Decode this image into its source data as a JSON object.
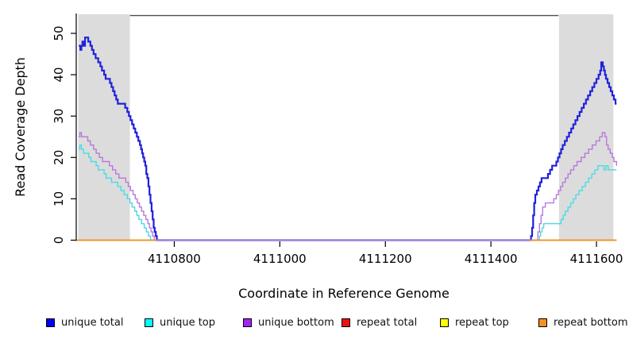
{
  "chart_data": {
    "type": "line",
    "subtype": "step-after-coverage",
    "title": "",
    "xlabel": "Coordinate in Reference Genome",
    "ylabel": "Read Coverage Depth",
    "xlim": [
      4110615,
      4111638
    ],
    "ylim": [
      0,
      54.6
    ],
    "x_ticks": [
      4110800,
      4111000,
      4111200,
      4111400,
      4111600
    ],
    "y_ticks": [
      0,
      10,
      20,
      30,
      40,
      50
    ],
    "grid": false,
    "legend_position": "bottom",
    "background": "#ffffff",
    "shaded_regions": [
      {
        "name": "left-flank",
        "x1": 4110618,
        "x2": 4110716,
        "color": "#dcdcdc"
      },
      {
        "name": "right-flank",
        "x1": 4111529,
        "x2": 4111632,
        "color": "#dcdcdc"
      }
    ],
    "top_segment": {
      "x1": 4110716,
      "x2": 4111528,
      "y": 54.3,
      "color": "#4d4d4d"
    },
    "series": [
      {
        "name": "repeat total",
        "color": "#dd1111",
        "width": 1.3,
        "segments": [
          [
            [
              4110616,
              0
            ],
            [
              4110767,
              0
            ]
          ],
          [
            [
              4111474,
              0
            ],
            [
              4111638,
              0
            ]
          ]
        ]
      },
      {
        "name": "repeat top",
        "color": "#f5f500",
        "width": 1.3,
        "segments": [
          [
            [
              4110616,
              0
            ],
            [
              4110767,
              0
            ]
          ],
          [
            [
              4111474,
              0
            ],
            [
              4111638,
              0
            ]
          ]
        ]
      },
      {
        "name": "unique total",
        "color": "#2121dc",
        "width": 2.2,
        "segments": [
          [
            [
              4110619,
              47
            ],
            [
              4110622,
              46
            ],
            [
              4110624,
              47
            ],
            [
              4110626,
              48
            ],
            [
              4110628,
              47
            ],
            [
              4110631,
              49
            ],
            [
              4110637,
              48
            ],
            [
              4110641,
              47
            ],
            [
              4110644,
              46
            ],
            [
              4110647,
              45
            ],
            [
              4110651,
              44
            ],
            [
              4110656,
              43
            ],
            [
              4110660,
              42
            ],
            [
              4110663,
              41
            ],
            [
              4110667,
              40
            ],
            [
              4110670,
              39
            ],
            [
              4110674,
              39
            ],
            [
              4110678,
              38
            ],
            [
              4110681,
              37
            ],
            [
              4110684,
              36
            ],
            [
              4110687,
              35
            ],
            [
              4110690,
              34
            ],
            [
              4110693,
              33
            ],
            [
              4110703,
              33
            ],
            [
              4110707,
              32
            ],
            [
              4110711,
              31
            ],
            [
              4110714,
              30
            ],
            [
              4110717,
              29
            ],
            [
              4110720,
              28
            ],
            [
              4110723,
              27
            ],
            [
              4110726,
              26
            ],
            [
              4110729,
              25
            ],
            [
              4110732,
              24
            ],
            [
              4110735,
              23
            ],
            [
              4110737,
              22
            ],
            [
              4110739,
              21
            ],
            [
              4110741,
              20
            ],
            [
              4110743,
              19
            ],
            [
              4110745,
              18
            ],
            [
              4110747,
              16
            ],
            [
              4110749,
              15
            ],
            [
              4110751,
              13
            ],
            [
              4110753,
              11
            ],
            [
              4110755,
              9
            ],
            [
              4110757,
              7
            ],
            [
              4110759,
              5
            ],
            [
              4110761,
              3
            ],
            [
              4110763,
              2
            ],
            [
              4110765,
              1
            ],
            [
              4110767,
              0
            ],
            [
              4111474,
              0
            ],
            [
              4111476,
              1
            ],
            [
              4111478,
              3
            ],
            [
              4111480,
              6
            ],
            [
              4111482,
              9
            ],
            [
              4111484,
              11
            ],
            [
              4111487,
              12
            ],
            [
              4111490,
              13
            ],
            [
              4111493,
              14
            ],
            [
              4111496,
              15
            ],
            [
              4111505,
              15
            ],
            [
              4111508,
              16
            ],
            [
              4111512,
              17
            ],
            [
              4111516,
              18
            ],
            [
              4111520,
              18
            ],
            [
              4111524,
              19
            ],
            [
              4111527,
              20
            ],
            [
              4111530,
              21
            ],
            [
              4111533,
              22
            ],
            [
              4111536,
              23
            ],
            [
              4111540,
              24
            ],
            [
              4111544,
              25
            ],
            [
              4111548,
              26
            ],
            [
              4111552,
              27
            ],
            [
              4111556,
              28
            ],
            [
              4111560,
              29
            ],
            [
              4111564,
              30
            ],
            [
              4111568,
              31
            ],
            [
              4111572,
              32
            ],
            [
              4111576,
              33
            ],
            [
              4111580,
              34
            ],
            [
              4111584,
              35
            ],
            [
              4111588,
              36
            ],
            [
              4111592,
              37
            ],
            [
              4111596,
              38
            ],
            [
              4111600,
              39
            ],
            [
              4111604,
              40
            ],
            [
              4111607,
              41
            ],
            [
              4111609,
              43
            ],
            [
              4111612,
              42
            ],
            [
              4111614,
              41
            ],
            [
              4111616,
              40
            ],
            [
              4111618,
              39
            ],
            [
              4111621,
              38
            ],
            [
              4111624,
              37
            ],
            [
              4111627,
              36
            ],
            [
              4111630,
              35
            ],
            [
              4111633,
              34
            ],
            [
              4111636,
              33
            ],
            [
              4111638,
              33
            ]
          ]
        ]
      },
      {
        "name": "unique top",
        "color": "#49dbe8",
        "width": 1.4,
        "segments": [
          [
            [
              4110619,
              22
            ],
            [
              4110621,
              23
            ],
            [
              4110624,
              22
            ],
            [
              4110628,
              21
            ],
            [
              4110634,
              21
            ],
            [
              4110638,
              20
            ],
            [
              4110642,
              19
            ],
            [
              4110648,
              19
            ],
            [
              4110652,
              18
            ],
            [
              4110656,
              17
            ],
            [
              4110663,
              17
            ],
            [
              4110667,
              16
            ],
            [
              4110671,
              15
            ],
            [
              4110677,
              15
            ],
            [
              4110681,
              14
            ],
            [
              4110688,
              14
            ],
            [
              4110693,
              13
            ],
            [
              4110699,
              12
            ],
            [
              4110705,
              11
            ],
            [
              4110711,
              10
            ],
            [
              4110716,
              9
            ],
            [
              4110720,
              8
            ],
            [
              4110725,
              7
            ],
            [
              4110729,
              6
            ],
            [
              4110733,
              5
            ],
            [
              4110738,
              4
            ],
            [
              4110743,
              3
            ],
            [
              4110747,
              2
            ],
            [
              4110751,
              1
            ],
            [
              4110755,
              0
            ],
            [
              4111489,
              0
            ],
            [
              4111492,
              1
            ],
            [
              4111494,
              2
            ],
            [
              4111497,
              3
            ],
            [
              4111500,
              4
            ],
            [
              4111529,
              4
            ],
            [
              4111533,
              5
            ],
            [
              4111537,
              6
            ],
            [
              4111541,
              7
            ],
            [
              4111546,
              8
            ],
            [
              4111551,
              9
            ],
            [
              4111556,
              10
            ],
            [
              4111561,
              11
            ],
            [
              4111567,
              12
            ],
            [
              4111573,
              13
            ],
            [
              4111579,
              14
            ],
            [
              4111585,
              15
            ],
            [
              4111591,
              16
            ],
            [
              4111597,
              17
            ],
            [
              4111603,
              18
            ],
            [
              4111611,
              18
            ],
            [
              4111614,
              17
            ],
            [
              4111618,
              18
            ],
            [
              4111622,
              17
            ],
            [
              4111638,
              17
            ]
          ]
        ]
      },
      {
        "name": "unique bottom",
        "color": "#b878dc",
        "width": 1.4,
        "segments": [
          [
            [
              4110619,
              25
            ],
            [
              4110621,
              26
            ],
            [
              4110624,
              25
            ],
            [
              4110631,
              25
            ],
            [
              4110636,
              24
            ],
            [
              4110641,
              23
            ],
            [
              4110647,
              22
            ],
            [
              4110652,
              21
            ],
            [
              4110658,
              20
            ],
            [
              4110664,
              19
            ],
            [
              4110672,
              19
            ],
            [
              4110677,
              18
            ],
            [
              4110683,
              17
            ],
            [
              4110689,
              16
            ],
            [
              4110695,
              15
            ],
            [
              4110703,
              15
            ],
            [
              4110708,
              14
            ],
            [
              4110713,
              13
            ],
            [
              4110717,
              12
            ],
            [
              4110722,
              11
            ],
            [
              4110726,
              10
            ],
            [
              4110730,
              9
            ],
            [
              4110734,
              8
            ],
            [
              4110738,
              7
            ],
            [
              4110742,
              6
            ],
            [
              4110746,
              5
            ],
            [
              4110750,
              4
            ],
            [
              4110753,
              3
            ],
            [
              4110756,
              2
            ],
            [
              4110759,
              1
            ],
            [
              4110762,
              0
            ],
            [
              4111486,
              0
            ],
            [
              4111489,
              2
            ],
            [
              4111492,
              4
            ],
            [
              4111495,
              6
            ],
            [
              4111498,
              8
            ],
            [
              4111503,
              9
            ],
            [
              4111514,
              9
            ],
            [
              4111519,
              10
            ],
            [
              4111524,
              11
            ],
            [
              4111528,
              12
            ],
            [
              4111532,
              13
            ],
            [
              4111536,
              14
            ],
            [
              4111541,
              15
            ],
            [
              4111546,
              16
            ],
            [
              4111551,
              17
            ],
            [
              4111557,
              18
            ],
            [
              4111563,
              19
            ],
            [
              4111571,
              20
            ],
            [
              4111578,
              21
            ],
            [
              4111585,
              22
            ],
            [
              4111592,
              23
            ],
            [
              4111599,
              24
            ],
            [
              4111606,
              25
            ],
            [
              4111611,
              26
            ],
            [
              4111616,
              25
            ],
            [
              4111619,
              23
            ],
            [
              4111622,
              22
            ],
            [
              4111626,
              21
            ],
            [
              4111630,
              20
            ],
            [
              4111633,
              19
            ],
            [
              4111638,
              18
            ]
          ]
        ]
      },
      {
        "name": "repeat bottom",
        "color": "#f59120",
        "width": 1.8,
        "segments": [
          [
            [
              4110616,
              0
            ],
            [
              4110767,
              0
            ]
          ],
          [
            [
              4111474,
              0
            ],
            [
              4111638,
              0
            ]
          ]
        ]
      }
    ]
  },
  "legend": {
    "items": [
      {
        "label": "unique total",
        "color": "#0000f5"
      },
      {
        "label": "unique top",
        "color": "#00ffff"
      },
      {
        "label": "unique bottom",
        "color": "#a325f0"
      },
      {
        "label": "repeat total",
        "color": "#ee1111"
      },
      {
        "label": "repeat top",
        "color": "#ffff00"
      },
      {
        "label": "repeat bottom",
        "color": "#f59120"
      }
    ]
  }
}
